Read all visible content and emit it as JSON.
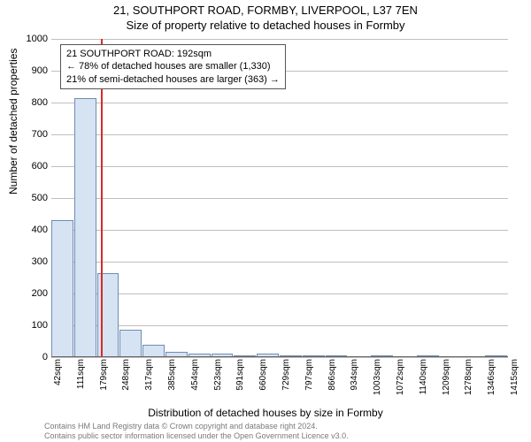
{
  "title_main": "21, SOUTHPORT ROAD, FORMBY, LIVERPOOL, L37 7EN",
  "title_sub": "Size of property relative to detached houses in Formby",
  "y_label": "Number of detached properties",
  "x_label": "Distribution of detached houses by size in Formby",
  "footer_line1": "Contains HM Land Registry data © Crown copyright and database right 2024.",
  "footer_line2": "Contains public sector information licensed under the Open Government Licence v3.0.",
  "annotation": {
    "line1": "21 SOUTHPORT ROAD: 192sqm",
    "line2": "← 78% of detached houses are smaller (1,330)",
    "line3": "21% of semi-detached houses are larger (363) →"
  },
  "chart": {
    "type": "histogram",
    "ylim": [
      0,
      1000
    ],
    "ytick_step": 100,
    "grid_color": "#bfbfbf",
    "bar_fill": "#d6e3f3",
    "bar_stroke": "#6f8cb3",
    "background": "#ffffff",
    "marker_x": 192,
    "marker_color": "#d92a2a",
    "x_start": 42,
    "x_bin_width": 68.5,
    "x_tick_labels": [
      "42sqm",
      "111sqm",
      "179sqm",
      "248sqm",
      "317sqm",
      "385sqm",
      "454sqm",
      "523sqm",
      "591sqm",
      "660sqm",
      "729sqm",
      "797sqm",
      "866sqm",
      "934sqm",
      "1003sqm",
      "1072sqm",
      "1140sqm",
      "1209sqm",
      "1278sqm",
      "1346sqm",
      "1415sqm"
    ],
    "values": [
      430,
      815,
      265,
      85,
      40,
      18,
      12,
      10,
      6,
      10,
      6,
      5,
      4,
      0,
      3,
      0,
      2,
      0,
      0,
      2
    ],
    "title_fontsize": 13,
    "label_fontsize": 12,
    "tick_fontsize": 11
  }
}
